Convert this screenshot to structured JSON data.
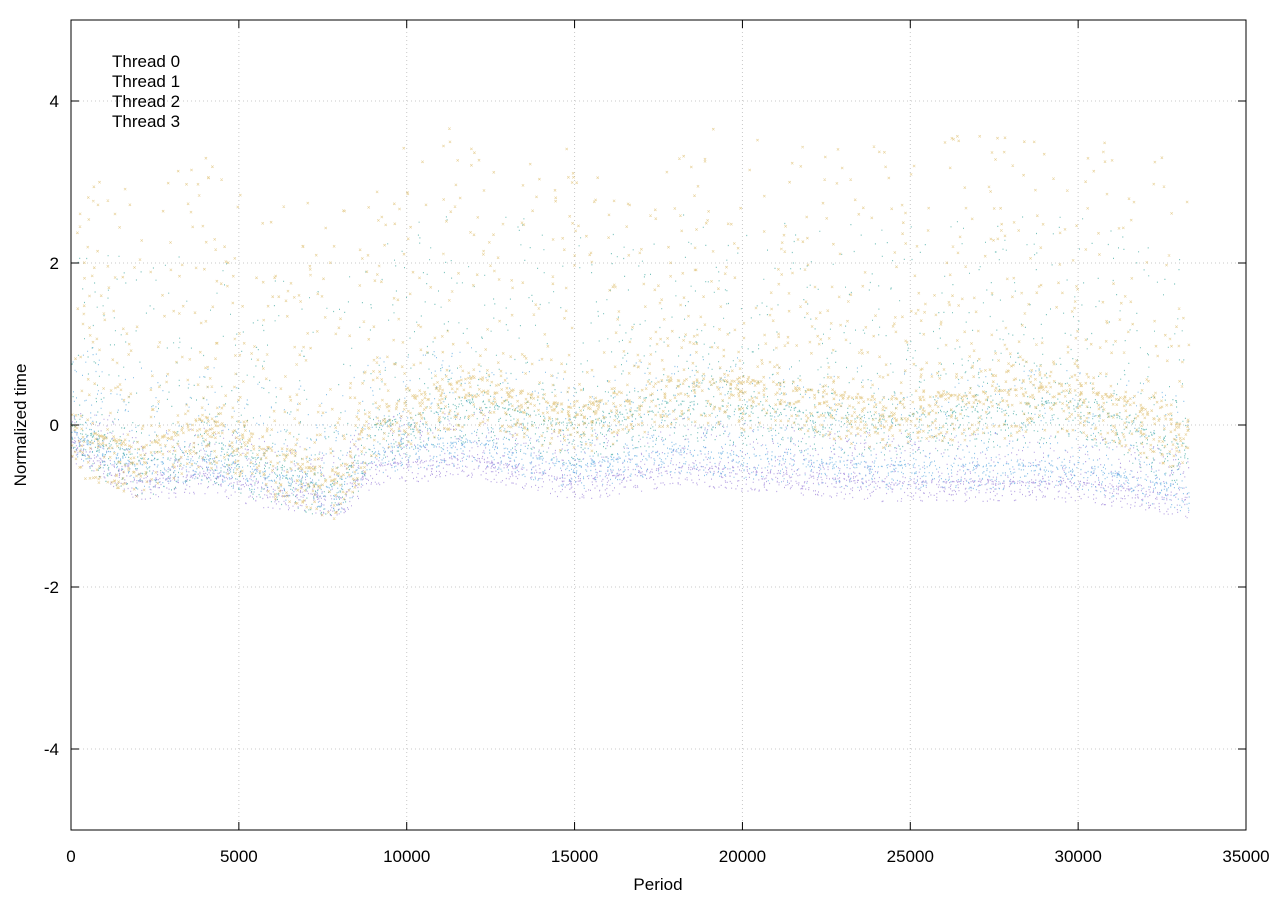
{
  "chart_data": {
    "type": "scatter",
    "title": "",
    "xlabel": "Period",
    "ylabel": "Normalized time",
    "xlim": [
      0,
      35000
    ],
    "ylim": [
      -5,
      5
    ],
    "xticks": [
      0,
      5000,
      10000,
      15000,
      20000,
      25000,
      30000,
      35000
    ],
    "yticks": [
      -4,
      -2,
      0,
      2,
      4
    ],
    "grid": true,
    "legend_position": "top-left",
    "n_periods": 33300,
    "series": [
      {
        "name": "Thread 0",
        "color": "#9b80d8",
        "marker": "dot",
        "trend": [
          [
            0,
            -0.2
          ],
          [
            2000,
            -0.7
          ],
          [
            4000,
            -0.6
          ],
          [
            6000,
            -0.8
          ],
          [
            8000,
            -0.9
          ],
          [
            9000,
            -0.5
          ],
          [
            12000,
            -0.4
          ],
          [
            15000,
            -0.7
          ],
          [
            18000,
            -0.5
          ],
          [
            21000,
            -0.6
          ],
          [
            24000,
            -0.7
          ],
          [
            27000,
            -0.7
          ],
          [
            30000,
            -0.7
          ],
          [
            33300,
            -0.9
          ]
        ],
        "spread_low": 0.25,
        "spread_high": 0.3
      },
      {
        "name": "Thread 1",
        "color": "#5aa8e0",
        "marker": "dot",
        "trend": [
          [
            0,
            -0.1
          ],
          [
            2000,
            -0.5
          ],
          [
            4000,
            -0.4
          ],
          [
            6000,
            -0.6
          ],
          [
            8000,
            -0.8
          ],
          [
            9000,
            -0.3
          ],
          [
            12000,
            -0.2
          ],
          [
            15000,
            -0.5
          ],
          [
            18000,
            -0.3
          ],
          [
            21000,
            -0.4
          ],
          [
            24000,
            -0.5
          ],
          [
            27000,
            -0.5
          ],
          [
            30000,
            -0.5
          ],
          [
            33300,
            -0.8
          ]
        ],
        "spread_low": 0.3,
        "spread_high": 0.6
      },
      {
        "name": "Thread 2",
        "color": "#3fa8a0",
        "marker": "dot",
        "trend": [
          [
            0,
            0.0
          ],
          [
            2000,
            -0.4
          ],
          [
            4000,
            -0.2
          ],
          [
            6000,
            -0.5
          ],
          [
            8000,
            -0.7
          ],
          [
            9000,
            0.0
          ],
          [
            12000,
            0.3
          ],
          [
            15000,
            0.0
          ],
          [
            18000,
            0.3
          ],
          [
            21000,
            0.2
          ],
          [
            24000,
            0.1
          ],
          [
            27000,
            0.2
          ],
          [
            30000,
            0.3
          ],
          [
            33300,
            -0.3
          ]
        ],
        "spread_low": 0.5,
        "spread_high": 1.2
      },
      {
        "name": "Thread 3",
        "color": "#d4aa40",
        "marker": "cross",
        "trend": [
          [
            0,
            0.0
          ],
          [
            2000,
            -0.3
          ],
          [
            4000,
            0.1
          ],
          [
            6000,
            -0.3
          ],
          [
            8000,
            -0.6
          ],
          [
            9000,
            0.2
          ],
          [
            12000,
            0.6
          ],
          [
            15000,
            0.2
          ],
          [
            18000,
            0.6
          ],
          [
            21000,
            0.5
          ],
          [
            24000,
            0.3
          ],
          [
            27000,
            0.4
          ],
          [
            30000,
            0.5
          ],
          [
            33300,
            0.0
          ]
        ],
        "spread_low": 0.6,
        "spread_high": 1.6
      }
    ]
  }
}
